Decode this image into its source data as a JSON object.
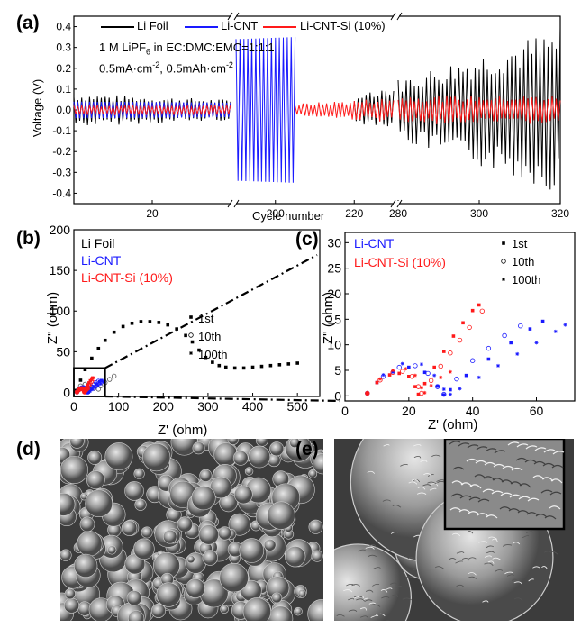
{
  "panels": [
    {
      "letter": "(a)"
    },
    {
      "letter": "(b)"
    },
    {
      "letter": "(c)"
    },
    {
      "letter": "(d)"
    },
    {
      "letter": "(e)"
    }
  ],
  "colors": {
    "li_foil": "#000000",
    "li_cnt": "#1a1aff",
    "li_cnt_si": "#ff1a1a"
  },
  "chart_data": [
    {
      "id": "a",
      "type": "line",
      "xlabel": "Cycle number",
      "ylabel": "Voltage (V)",
      "ylim": [
        -0.45,
        0.45
      ],
      "x_segments": [
        [
          0,
          40
        ],
        [
          190,
          230
        ],
        [
          280,
          320
        ]
      ],
      "x_ticks": [
        {
          "value": 20,
          "label": "20"
        },
        {
          "value": 200,
          "label": "200"
        },
        {
          "value": 220,
          "label": "220"
        },
        {
          "value": 280,
          "label": "280"
        },
        {
          "value": 300,
          "label": "300"
        },
        {
          "value": 320,
          "label": "320"
        }
      ],
      "y_ticks": [
        -0.4,
        -0.3,
        -0.2,
        -0.1,
        0.0,
        0.1,
        0.2,
        0.3,
        0.4
      ],
      "y_tick_labels": [
        "-0.4",
        "-0.3",
        "-0.2",
        "-0.1",
        "0.0",
        "0.1",
        "0.2",
        "0.3",
        "0.4"
      ],
      "legend": [
        "Li Foil",
        "Li-CNT",
        "Li-CNT-Si (10%)"
      ],
      "annotations": {
        "electrolyte_pre": "1 M LiPF",
        "electrolyte_sub": "6",
        "electrolyte_post": " in EC:DMC:EMC=1:1:1",
        "current_pre": "0.5mA·cm",
        "current_sup1": "-2",
        "current_mid": ",  0.5mAh·cm",
        "current_sup2": "-2"
      },
      "series": [
        {
          "name": "Li Foil",
          "amplitude_by_cycle": [
            [
              0,
              0.08
            ],
            [
              40,
              0.05
            ],
            [
              190,
              0.0
            ],
            [
              230,
              0.1
            ],
            [
              280,
              0.15
            ],
            [
              320,
              0.4
            ]
          ]
        },
        {
          "name": "Li-CNT",
          "amplitude_by_cycle": [
            [
              0,
              0.04
            ],
            [
              40,
              0.035
            ],
            [
              190,
              0.34
            ],
            [
              205,
              0.35
            ]
          ]
        },
        {
          "name": "Li-CNT-Si (10%)",
          "amplitude_by_cycle": [
            [
              0,
              0.025
            ],
            [
              40,
              0.025
            ],
            [
              205,
              0.03
            ],
            [
              230,
              0.06
            ],
            [
              280,
              0.07
            ],
            [
              320,
              0.07
            ]
          ]
        }
      ]
    },
    {
      "id": "b",
      "type": "scatter",
      "xlabel": "Z' (ohm)",
      "ylabel": "Z'' (ohm)",
      "xlim": [
        0,
        550
      ],
      "ylim": [
        -5,
        200
      ],
      "x_ticks": [
        "0",
        "100",
        "200",
        "300",
        "400",
        "500"
      ],
      "y_ticks": [
        "0",
        "50",
        "100",
        "150",
        "200"
      ],
      "text_legend": [
        "Li Foil",
        "Li-CNT",
        "Li-CNT-Si (10%)"
      ],
      "marker_legend": [
        "1st",
        "10th",
        "100th"
      ],
      "series": [
        {
          "name": "Li Foil 1st",
          "x": [
            5,
            15,
            25,
            40,
            55,
            70,
            90,
            110,
            130,
            150,
            170,
            190,
            210,
            230,
            250,
            265,
            280,
            295,
            310,
            325,
            340,
            360,
            380,
            400,
            420,
            440,
            460,
            480,
            500
          ],
          "y": [
            2,
            15,
            28,
            42,
            54,
            64,
            74,
            81,
            85,
            87,
            87,
            86,
            83,
            78,
            70,
            62,
            52,
            43,
            37,
            33,
            31,
            30,
            30,
            31,
            32,
            33,
            34,
            35,
            36
          ]
        },
        {
          "name": "Li Foil 10th",
          "x": [
            5,
            15,
            25,
            35,
            45,
            55,
            60,
            70,
            80,
            90
          ],
          "y": [
            2,
            8,
            10,
            8,
            5,
            4,
            8,
            12,
            16,
            20
          ]
        },
        {
          "name": "Li-CNT 1st",
          "x": [
            7,
            10,
            15,
            20,
            25,
            29,
            31,
            33,
            38,
            45,
            52,
            58,
            62
          ],
          "y": [
            0.5,
            2.6,
            4.7,
            5.6,
            4.6,
            1.9,
            0.2,
            1.2,
            4.0,
            7.2,
            10.4,
            13.1,
            14.6
          ]
        },
        {
          "name": "Li-CNT 10th",
          "x": [
            7,
            12,
            17,
            22,
            26,
            29,
            31,
            35,
            40,
            45,
            50,
            55
          ],
          "y": [
            0.5,
            3.8,
            5.6,
            5.9,
            4.4,
            1.8,
            0.3,
            3.3,
            6.9,
            9.3,
            11.8,
            13.7
          ]
        },
        {
          "name": "Li-CNT 100th",
          "x": [
            7,
            12,
            18,
            24,
            28,
            31,
            33,
            36,
            42,
            48,
            54,
            60,
            66,
            69
          ],
          "y": [
            0.5,
            4.1,
            6.3,
            6.2,
            4.0,
            1.3,
            0.3,
            1.4,
            3.6,
            5.9,
            8.2,
            10.4,
            12.6,
            13.9
          ]
        },
        {
          "name": "Li-CNT-Si 1st",
          "x": [
            7,
            10,
            14,
            17,
            20,
            22,
            23,
            25,
            28,
            31,
            34,
            37,
            40,
            42
          ],
          "y": [
            0.5,
            2.6,
            4.1,
            4.4,
            3.8,
            1.8,
            0.3,
            2.4,
            5.6,
            8.7,
            11.7,
            14.3,
            16.7,
            17.8
          ]
        },
        {
          "name": "Li-CNT-Si 10th",
          "x": [
            7,
            11,
            15,
            18,
            21,
            23,
            24,
            27,
            30,
            33,
            36,
            39,
            43
          ],
          "y": [
            0.5,
            3.1,
            4.6,
            4.8,
            3.8,
            1.8,
            0.5,
            3.0,
            5.8,
            8.4,
            10.9,
            13.4,
            16.6
          ]
        },
        {
          "name": "Li-CNT-Si 100th",
          "x": [
            7,
            11,
            15,
            19,
            22,
            24,
            25,
            27,
            30,
            33
          ],
          "y": [
            0.5,
            3.3,
            5.0,
            5.3,
            4.0,
            1.6,
            0.6,
            2.0,
            3.6,
            4.7
          ]
        }
      ]
    },
    {
      "id": "c",
      "type": "scatter",
      "xlabel": "Z' (ohm)",
      "ylabel": "Z'' (ohm)",
      "xlim": [
        0,
        72
      ],
      "ylim": [
        -1,
        32
      ],
      "x_ticks": [
        "0",
        "20",
        "40",
        "60"
      ],
      "y_ticks": [
        "0",
        "5",
        "10",
        "15",
        "20",
        "25",
        "30"
      ],
      "text_legend": [
        "Li-CNT",
        "Li-CNT-Si (10%)"
      ],
      "marker_legend": [
        "1st",
        "10th",
        "100th"
      ]
    }
  ],
  "sem_panels": [
    "d",
    "e"
  ]
}
